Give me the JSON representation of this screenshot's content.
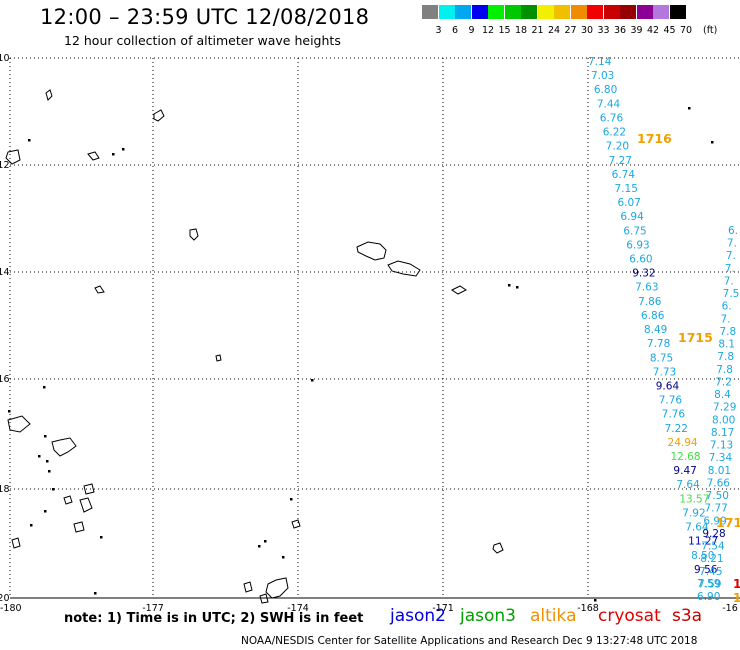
{
  "header": {
    "title": "12:00 – 23:59 UTC 12/08/2018",
    "subtitle": "12 hour collection of altimeter wave heights"
  },
  "legend": {
    "colors": [
      "#808080",
      "#00f0f0",
      "#00a8f0",
      "#0000f0",
      "#00f000",
      "#00c800",
      "#009000",
      "#f0f000",
      "#f0c000",
      "#f08c00",
      "#f00000",
      "#c80000",
      "#960000",
      "#8c0096",
      "#b478dc",
      "#000000"
    ],
    "labels": [
      "3",
      "6",
      "9",
      "12",
      "15",
      "18",
      "21",
      "24",
      "27",
      "30",
      "33",
      "36",
      "39",
      "42",
      "45",
      "70"
    ],
    "unit": "(ft)"
  },
  "map": {
    "lat_labels": [
      "-10",
      "-12",
      "-14",
      "-16",
      "-18",
      "-20"
    ],
    "lon_labels": [
      "-180",
      "-177",
      "-174",
      "-171",
      "-168",
      "-16"
    ],
    "track_labels": [
      "1716",
      "1715",
      "171"
    ],
    "pass1": [
      "7.14",
      "7.03",
      "6.80",
      "7.44",
      "6.76",
      "6.22",
      "7.20",
      "7.27",
      "6.74",
      "7.15",
      "6.07",
      "6.94",
      "6.75",
      "6.93",
      "6.60",
      "9.32",
      "7.63",
      "7.86",
      "6.86",
      "8.49",
      "7.78",
      "8.75",
      "7.73",
      "9.64",
      "7.76",
      "7.76",
      "7.22",
      "24.94",
      "12.68",
      "9.47",
      "7.64",
      "13.57",
      "7.92",
      "7.64",
      "11.27",
      "8.50",
      "9.56",
      "7.59"
    ],
    "pass2_right": [
      "6.",
      "7.",
      "7.",
      "7.",
      "7.",
      "7.5",
      "6.",
      "7.",
      "7.8",
      "8.1",
      "7.8",
      "7.8",
      "7.2",
      "8.4",
      "7.29",
      "8.00",
      "8.17",
      "7.13",
      "7.34",
      "8.01",
      "7.66",
      "7.50",
      "7.77",
      "6.99",
      "9.28",
      "7.54",
      "8.21",
      "7.45",
      "7.59",
      "6.90"
    ],
    "edge_fragments": [
      "1",
      "1"
    ]
  },
  "footer": {
    "note": "note:  1) Time is in UTC;  2) SWH is in feet",
    "satellites": [
      {
        "name": "jason2",
        "color": "#0000e0"
      },
      {
        "name": "jason3",
        "color": "#00a000"
      },
      {
        "name": "altika",
        "color": "#f09000"
      },
      {
        "name": "cryosat",
        "color": "#e00000"
      },
      {
        "name": "s3a",
        "color": "#c80000"
      }
    ],
    "credit": "NOAA/NESDIS Center for Satellite Applications and Research    Dec  9 13:27:48 UTC 2018"
  }
}
